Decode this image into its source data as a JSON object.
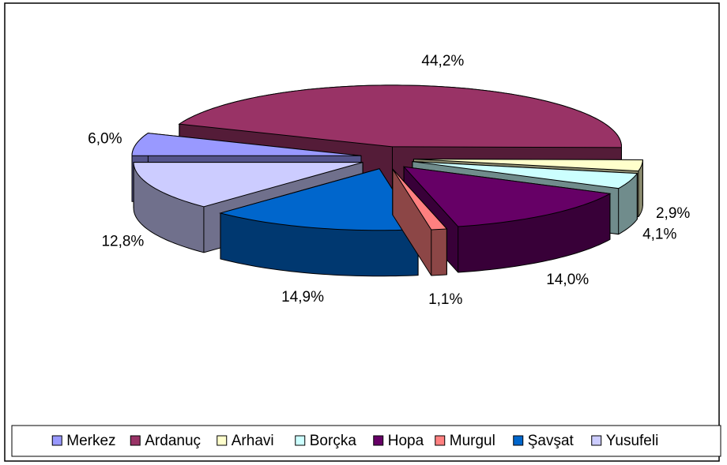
{
  "chart_data": {
    "type": "pie",
    "categories": [
      "Merkez",
      "Ardanuç",
      "Arhavi",
      "Borçka",
      "Hopa",
      "Murgul",
      "Şavşat",
      "Yusufeli"
    ],
    "values": [
      6.0,
      44.2,
      2.9,
      4.1,
      14.0,
      1.1,
      14.9,
      12.8
    ],
    "value_labels": [
      "6,0%",
      "44,2%",
      "2,9%",
      "4,1%",
      "14,0%",
      "1,1%",
      "14,9%",
      "12,8%"
    ],
    "colors": [
      "#9999ff",
      "#993366",
      "#ffffcc",
      "#ccffff",
      "#660066",
      "#ff8080",
      "#0066cc",
      "#ccccff"
    ],
    "legend": "bottom"
  }
}
